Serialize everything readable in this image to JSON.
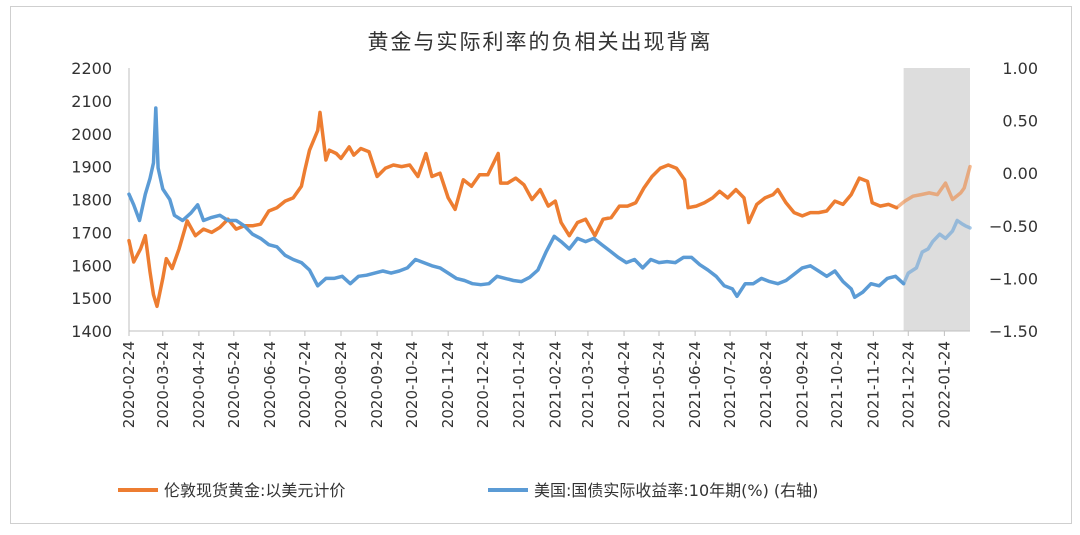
{
  "chart_data": {
    "type": "line",
    "title": "黄金与实际利率的负相关出现背离",
    "xlabel": "",
    "ylabel": "",
    "x_start": "2020-02-24",
    "x_end": "2022-02-15",
    "xticks": [
      "2020-02-24",
      "2020-03-24",
      "2020-04-24",
      "2020-05-24",
      "2020-06-24",
      "2020-07-24",
      "2020-08-24",
      "2020-09-24",
      "2020-10-24",
      "2020-11-24",
      "2020-12-24",
      "2021-01-24",
      "2021-02-24",
      "2021-03-24",
      "2021-04-24",
      "2021-05-24",
      "2021-06-24",
      "2021-07-24",
      "2021-08-24",
      "2021-09-24",
      "2021-10-24",
      "2021-11-24",
      "2021-12-24",
      "2022-01-24"
    ],
    "y_left": {
      "ticks": [
        "1400",
        "1500",
        "1600",
        "1700",
        "1800",
        "1900",
        "2000",
        "2100",
        "2200"
      ],
      "ylim": [
        1400,
        2200
      ]
    },
    "y_right": {
      "ticks": [
        "-1.50",
        "-1.00",
        "-0.50",
        "0.00",
        "0.50",
        "1.00"
      ],
      "ylim": [
        -1.5,
        1.0
      ]
    },
    "highlight_region": {
      "from": "2021-12-20",
      "to": "2022-02-15",
      "color": "#d9d9d9"
    },
    "series": [
      {
        "name": "伦敦现货黄金:以美元计价",
        "axis": "left",
        "color": "#ed7d31",
        "points": [
          [
            "2020-02-24",
            1675
          ],
          [
            "2020-02-28",
            1610
          ],
          [
            "2020-03-05",
            1650
          ],
          [
            "2020-03-09",
            1690
          ],
          [
            "2020-03-13",
            1580
          ],
          [
            "2020-03-16",
            1510
          ],
          [
            "2020-03-19",
            1475
          ],
          [
            "2020-03-24",
            1560
          ],
          [
            "2020-03-27",
            1620
          ],
          [
            "2020-04-01",
            1590
          ],
          [
            "2020-04-07",
            1650
          ],
          [
            "2020-04-14",
            1735
          ],
          [
            "2020-04-21",
            1690
          ],
          [
            "2020-04-28",
            1710
          ],
          [
            "2020-05-05",
            1700
          ],
          [
            "2020-05-12",
            1715
          ],
          [
            "2020-05-19",
            1740
          ],
          [
            "2020-05-26",
            1710
          ],
          [
            "2020-06-02",
            1720
          ],
          [
            "2020-06-09",
            1720
          ],
          [
            "2020-06-16",
            1725
          ],
          [
            "2020-06-23",
            1765
          ],
          [
            "2020-06-30",
            1775
          ],
          [
            "2020-07-07",
            1795
          ],
          [
            "2020-07-14",
            1805
          ],
          [
            "2020-07-21",
            1840
          ],
          [
            "2020-07-24",
            1890
          ],
          [
            "2020-07-28",
            1950
          ],
          [
            "2020-08-04",
            2010
          ],
          [
            "2020-08-06",
            2065
          ],
          [
            "2020-08-11",
            1920
          ],
          [
            "2020-08-14",
            1950
          ],
          [
            "2020-08-20",
            1940
          ],
          [
            "2020-08-24",
            1925
          ],
          [
            "2020-08-31",
            1960
          ],
          [
            "2020-09-04",
            1935
          ],
          [
            "2020-09-10",
            1955
          ],
          [
            "2020-09-17",
            1945
          ],
          [
            "2020-09-24",
            1870
          ],
          [
            "2020-10-01",
            1895
          ],
          [
            "2020-10-08",
            1905
          ],
          [
            "2020-10-15",
            1900
          ],
          [
            "2020-10-22",
            1905
          ],
          [
            "2020-10-29",
            1870
          ],
          [
            "2020-11-05",
            1940
          ],
          [
            "2020-11-10",
            1870
          ],
          [
            "2020-11-17",
            1880
          ],
          [
            "2020-11-24",
            1805
          ],
          [
            "2020-11-30",
            1770
          ],
          [
            "2020-12-07",
            1860
          ],
          [
            "2020-12-14",
            1840
          ],
          [
            "2020-12-21",
            1875
          ],
          [
            "2020-12-28",
            1875
          ],
          [
            "2021-01-06",
            1940
          ],
          [
            "2021-01-08",
            1850
          ],
          [
            "2021-01-14",
            1850
          ],
          [
            "2021-01-21",
            1865
          ],
          [
            "2021-01-28",
            1845
          ],
          [
            "2021-02-04",
            1800
          ],
          [
            "2021-02-11",
            1830
          ],
          [
            "2021-02-18",
            1780
          ],
          [
            "2021-02-24",
            1795
          ],
          [
            "2021-03-01",
            1730
          ],
          [
            "2021-03-08",
            1690
          ],
          [
            "2021-03-15",
            1730
          ],
          [
            "2021-03-22",
            1740
          ],
          [
            "2021-03-30",
            1690
          ],
          [
            "2021-04-06",
            1740
          ],
          [
            "2021-04-13",
            1745
          ],
          [
            "2021-04-20",
            1780
          ],
          [
            "2021-04-27",
            1780
          ],
          [
            "2021-05-04",
            1790
          ],
          [
            "2021-05-11",
            1835
          ],
          [
            "2021-05-18",
            1870
          ],
          [
            "2021-05-25",
            1895
          ],
          [
            "2021-06-01",
            1905
          ],
          [
            "2021-06-08",
            1895
          ],
          [
            "2021-06-15",
            1860
          ],
          [
            "2021-06-18",
            1775
          ],
          [
            "2021-06-25",
            1780
          ],
          [
            "2021-07-02",
            1790
          ],
          [
            "2021-07-09",
            1805
          ],
          [
            "2021-07-15",
            1825
          ],
          [
            "2021-07-22",
            1805
          ],
          [
            "2021-07-29",
            1830
          ],
          [
            "2021-08-05",
            1805
          ],
          [
            "2021-08-09",
            1730
          ],
          [
            "2021-08-16",
            1785
          ],
          [
            "2021-08-23",
            1805
          ],
          [
            "2021-08-30",
            1815
          ],
          [
            "2021-09-03",
            1830
          ],
          [
            "2021-09-10",
            1790
          ],
          [
            "2021-09-17",
            1760
          ],
          [
            "2021-09-24",
            1750
          ],
          [
            "2021-10-01",
            1760
          ],
          [
            "2021-10-08",
            1760
          ],
          [
            "2021-10-15",
            1765
          ],
          [
            "2021-10-22",
            1795
          ],
          [
            "2021-10-29",
            1785
          ],
          [
            "2021-11-05",
            1815
          ],
          [
            "2021-11-12",
            1865
          ],
          [
            "2021-11-19",
            1855
          ],
          [
            "2021-11-23",
            1790
          ],
          [
            "2021-11-30",
            1780
          ],
          [
            "2021-12-07",
            1785
          ],
          [
            "2021-12-14",
            1775
          ],
          [
            "2021-12-21",
            1795
          ],
          [
            "2021-12-28",
            1810
          ],
          [
            "2022-01-04",
            1815
          ],
          [
            "2022-01-11",
            1820
          ],
          [
            "2022-01-18",
            1815
          ],
          [
            "2022-01-25",
            1850
          ],
          [
            "2022-01-31",
            1800
          ],
          [
            "2022-02-07",
            1820
          ],
          [
            "2022-02-10",
            1835
          ],
          [
            "2022-02-15",
            1900
          ]
        ]
      },
      {
        "name": "美国:国债实际收益率:10年期(%) (右轴)",
        "axis": "right",
        "color": "#5b9bd5",
        "points": [
          [
            "2020-02-24",
            -0.2
          ],
          [
            "2020-02-28",
            -0.3
          ],
          [
            "2020-03-04",
            -0.45
          ],
          [
            "2020-03-09",
            -0.2
          ],
          [
            "2020-03-13",
            -0.05
          ],
          [
            "2020-03-16",
            0.1
          ],
          [
            "2020-03-18",
            0.62
          ],
          [
            "2020-03-20",
            0.05
          ],
          [
            "2020-03-24",
            -0.15
          ],
          [
            "2020-03-30",
            -0.25
          ],
          [
            "2020-04-03",
            -0.4
          ],
          [
            "2020-04-10",
            -0.45
          ],
          [
            "2020-04-17",
            -0.38
          ],
          [
            "2020-04-23",
            -0.3
          ],
          [
            "2020-04-28",
            -0.45
          ],
          [
            "2020-05-05",
            -0.42
          ],
          [
            "2020-05-12",
            -0.4
          ],
          [
            "2020-05-19",
            -0.45
          ],
          [
            "2020-05-26",
            -0.45
          ],
          [
            "2020-06-02",
            -0.5
          ],
          [
            "2020-06-09",
            -0.58
          ],
          [
            "2020-06-16",
            -0.62
          ],
          [
            "2020-06-23",
            -0.68
          ],
          [
            "2020-06-30",
            -0.7
          ],
          [
            "2020-07-07",
            -0.78
          ],
          [
            "2020-07-14",
            -0.82
          ],
          [
            "2020-07-21",
            -0.85
          ],
          [
            "2020-07-28",
            -0.92
          ],
          [
            "2020-08-04",
            -1.07
          ],
          [
            "2020-08-11",
            -1.0
          ],
          [
            "2020-08-18",
            -1.0
          ],
          [
            "2020-08-25",
            -0.98
          ],
          [
            "2020-09-01",
            -1.05
          ],
          [
            "2020-09-08",
            -0.98
          ],
          [
            "2020-09-15",
            -0.97
          ],
          [
            "2020-09-22",
            -0.95
          ],
          [
            "2020-09-29",
            -0.93
          ],
          [
            "2020-10-06",
            -0.95
          ],
          [
            "2020-10-13",
            -0.93
          ],
          [
            "2020-10-20",
            -0.9
          ],
          [
            "2020-10-27",
            -0.82
          ],
          [
            "2020-11-03",
            -0.85
          ],
          [
            "2020-11-10",
            -0.88
          ],
          [
            "2020-11-17",
            -0.9
          ],
          [
            "2020-11-24",
            -0.95
          ],
          [
            "2020-12-01",
            -1.0
          ],
          [
            "2020-12-08",
            -1.02
          ],
          [
            "2020-12-15",
            -1.05
          ],
          [
            "2020-12-22",
            -1.06
          ],
          [
            "2020-12-29",
            -1.05
          ],
          [
            "2021-01-05",
            -0.98
          ],
          [
            "2021-01-12",
            -1.0
          ],
          [
            "2021-01-19",
            -1.02
          ],
          [
            "2021-01-26",
            -1.03
          ],
          [
            "2021-02-02",
            -0.99
          ],
          [
            "2021-02-09",
            -0.92
          ],
          [
            "2021-02-16",
            -0.75
          ],
          [
            "2021-02-23",
            -0.6
          ],
          [
            "2021-03-01",
            -0.65
          ],
          [
            "2021-03-08",
            -0.72
          ],
          [
            "2021-03-15",
            -0.62
          ],
          [
            "2021-03-22",
            -0.65
          ],
          [
            "2021-03-29",
            -0.62
          ],
          [
            "2021-04-05",
            -0.68
          ],
          [
            "2021-04-12",
            -0.74
          ],
          [
            "2021-04-19",
            -0.8
          ],
          [
            "2021-04-26",
            -0.85
          ],
          [
            "2021-05-03",
            -0.82
          ],
          [
            "2021-05-10",
            -0.9
          ],
          [
            "2021-05-17",
            -0.82
          ],
          [
            "2021-05-24",
            -0.85
          ],
          [
            "2021-05-31",
            -0.84
          ],
          [
            "2021-06-07",
            -0.85
          ],
          [
            "2021-06-14",
            -0.8
          ],
          [
            "2021-06-21",
            -0.8
          ],
          [
            "2021-06-28",
            -0.87
          ],
          [
            "2021-07-05",
            -0.92
          ],
          [
            "2021-07-12",
            -0.98
          ],
          [
            "2021-07-19",
            -1.07
          ],
          [
            "2021-07-26",
            -1.1
          ],
          [
            "2021-07-30",
            -1.17
          ],
          [
            "2021-08-06",
            -1.05
          ],
          [
            "2021-08-13",
            -1.05
          ],
          [
            "2021-08-20",
            -1.0
          ],
          [
            "2021-08-27",
            -1.03
          ],
          [
            "2021-09-03",
            -1.05
          ],
          [
            "2021-09-10",
            -1.02
          ],
          [
            "2021-09-17",
            -0.96
          ],
          [
            "2021-09-24",
            -0.9
          ],
          [
            "2021-10-01",
            -0.88
          ],
          [
            "2021-10-08",
            -0.93
          ],
          [
            "2021-10-15",
            -0.98
          ],
          [
            "2021-10-22",
            -0.93
          ],
          [
            "2021-10-29",
            -1.03
          ],
          [
            "2021-11-05",
            -1.1
          ],
          [
            "2021-11-08",
            -1.18
          ],
          [
            "2021-11-15",
            -1.13
          ],
          [
            "2021-11-22",
            -1.05
          ],
          [
            "2021-11-29",
            -1.07
          ],
          [
            "2021-12-06",
            -1.0
          ],
          [
            "2021-12-13",
            -0.98
          ],
          [
            "2021-12-20",
            -1.05
          ],
          [
            "2021-12-24",
            -0.95
          ],
          [
            "2021-12-31",
            -0.9
          ],
          [
            "2022-01-05",
            -0.75
          ],
          [
            "2022-01-10",
            -0.72
          ],
          [
            "2022-01-14",
            -0.65
          ],
          [
            "2022-01-20",
            -0.58
          ],
          [
            "2022-01-25",
            -0.62
          ],
          [
            "2022-01-31",
            -0.55
          ],
          [
            "2022-02-04",
            -0.45
          ],
          [
            "2022-02-08",
            -0.48
          ],
          [
            "2022-02-11",
            -0.5
          ],
          [
            "2022-02-15",
            -0.52
          ]
        ]
      }
    ]
  }
}
